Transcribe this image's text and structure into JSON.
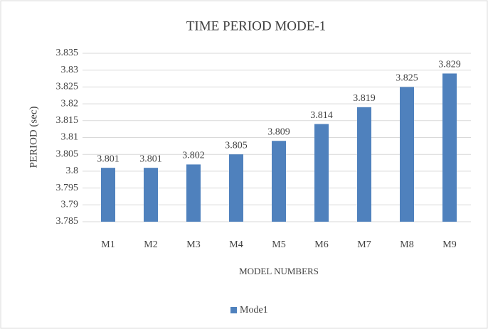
{
  "chart_data": {
    "type": "bar",
    "title": "TIME PERIOD MODE-1",
    "x_label": "MODEL NUMBERS",
    "y_label": "PERIOD (sec)",
    "categories": [
      "M1",
      "M2",
      "M3",
      "M4",
      "M5",
      "M6",
      "M7",
      "M8",
      "M9"
    ],
    "series": [
      {
        "name": "Mode1",
        "color": "#4f81bd",
        "values": [
          3.801,
          3.801,
          3.802,
          3.805,
          3.809,
          3.814,
          3.819,
          3.825,
          3.829
        ]
      }
    ],
    "ylim": [
      3.785,
      3.835
    ],
    "yticks": [
      3.785,
      3.79,
      3.795,
      3.8,
      3.805,
      3.81,
      3.815,
      3.82,
      3.825,
      3.83,
      3.835
    ],
    "grid": true,
    "legend": "bottom",
    "data_labels": true
  }
}
